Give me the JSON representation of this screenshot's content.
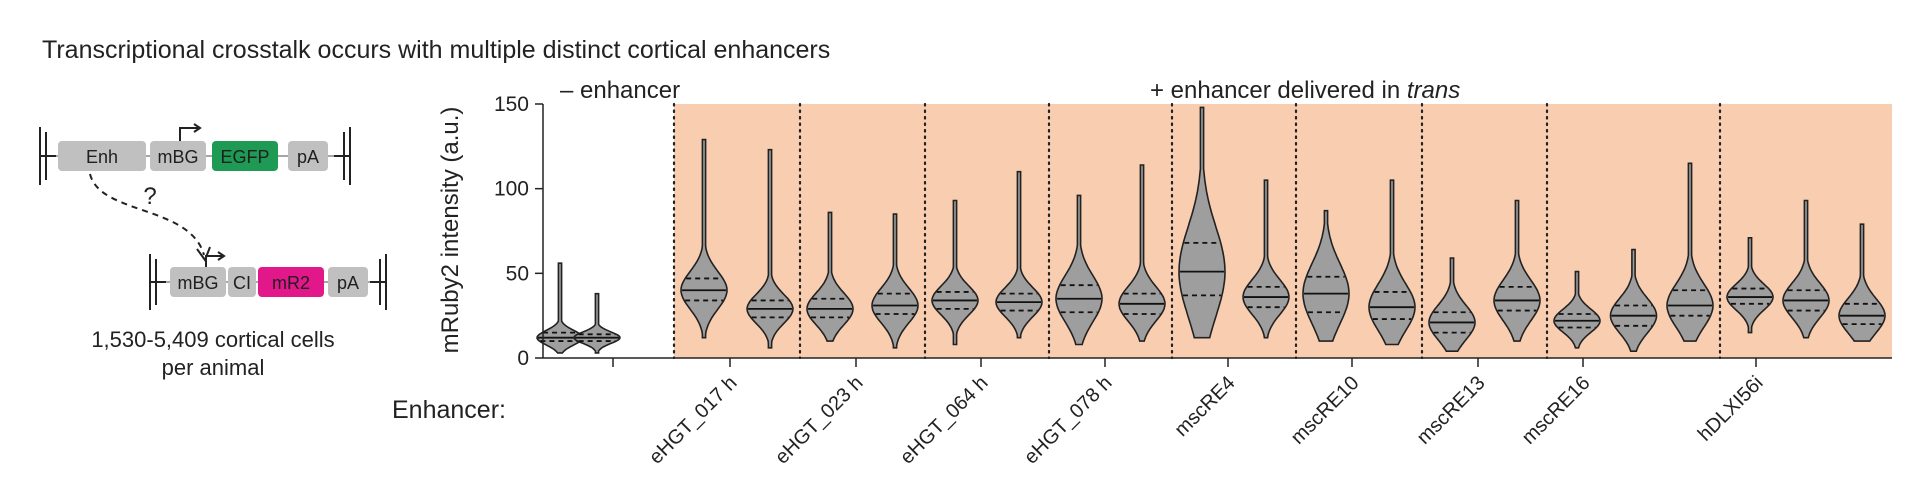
{
  "title": "Transcriptional crosstalk occurs with multiple distinct cortical enhancers",
  "schematic": {
    "construct_top": [
      "Enh",
      "mBG",
      "EGFP",
      "pA"
    ],
    "construct_bottom": [
      "mBG",
      "CI",
      "mR2",
      "pA"
    ],
    "question_mark": "?",
    "caption_line1": "1,530-5,409 cortical cells",
    "caption_line2": "per animal",
    "colors": {
      "part": "#c0c0c0",
      "egfp": "#1e9a55",
      "mr2": "#e2178a"
    }
  },
  "row_label": "Enhancer:",
  "chart_data": {
    "type": "violin",
    "ylabel": "mRuby2 intensity (a.u.)",
    "ylim": [
      0,
      150
    ],
    "yticks": [
      0,
      50,
      100,
      150
    ],
    "panel_labels": {
      "minus": "– enhancer",
      "plus_prefix": "+ enhancer delivered in ",
      "plus_italic": "trans"
    },
    "shade_color": "#f9cdb0",
    "violin_color": "#9e9e9e",
    "groups": [
      {
        "label": "",
        "shaded": false,
        "violins": [
          {
            "min": 3,
            "q1": 10,
            "median": 12,
            "q3": 15,
            "max": 56
          },
          {
            "min": 3,
            "q1": 10,
            "median": 12,
            "q3": 14,
            "max": 38
          }
        ]
      },
      {
        "label": "eHGT_017 h",
        "shaded": true,
        "violins": [
          {
            "min": 12,
            "q1": 34,
            "median": 40,
            "q3": 47,
            "max": 129
          },
          {
            "min": 6,
            "q1": 24,
            "median": 29,
            "q3": 34,
            "max": 123
          }
        ]
      },
      {
        "label": "eHGT_023 h",
        "shaded": true,
        "violins": [
          {
            "min": 10,
            "q1": 24,
            "median": 29,
            "q3": 35,
            "max": 86
          },
          {
            "min": 6,
            "q1": 26,
            "median": 31,
            "q3": 38,
            "max": 85
          }
        ]
      },
      {
        "label": "eHGT_064 h",
        "shaded": true,
        "violins": [
          {
            "min": 8,
            "q1": 29,
            "median": 34,
            "q3": 39,
            "max": 93
          },
          {
            "min": 12,
            "q1": 28,
            "median": 33,
            "q3": 38,
            "max": 110
          }
        ]
      },
      {
        "label": "eHGT_078 h",
        "shaded": true,
        "violins": [
          {
            "min": 8,
            "q1": 27,
            "median": 35,
            "q3": 43,
            "max": 96
          },
          {
            "min": 10,
            "q1": 26,
            "median": 32,
            "q3": 38,
            "max": 114
          }
        ]
      },
      {
        "label": "mscRE4",
        "shaded": true,
        "violins": [
          {
            "min": 12,
            "q1": 37,
            "median": 51,
            "q3": 68,
            "max": 148
          },
          {
            "min": 12,
            "q1": 30,
            "median": 36,
            "q3": 42,
            "max": 105
          }
        ]
      },
      {
        "label": "mscRE10",
        "shaded": true,
        "violins": [
          {
            "min": 10,
            "q1": 27,
            "median": 38,
            "q3": 48,
            "max": 87
          },
          {
            "min": 8,
            "q1": 23,
            "median": 30,
            "q3": 39,
            "max": 105
          }
        ]
      },
      {
        "label": "mscRE13",
        "shaded": true,
        "violins": [
          {
            "min": 4,
            "q1": 15,
            "median": 21,
            "q3": 27,
            "max": 59
          },
          {
            "min": 10,
            "q1": 28,
            "median": 34,
            "q3": 42,
            "max": 93
          }
        ]
      },
      {
        "label": "mscRE16",
        "shaded": true,
        "violins": [
          {
            "min": 6,
            "q1": 18,
            "median": 22,
            "q3": 26,
            "max": 51
          },
          {
            "min": 4,
            "q1": 19,
            "median": 25,
            "q3": 31,
            "max": 64
          },
          {
            "min": 10,
            "q1": 25,
            "median": 31,
            "q3": 40,
            "max": 115
          }
        ]
      },
      {
        "label": "hDLXI56i",
        "shaded": true,
        "violins": [
          {
            "min": 15,
            "q1": 32,
            "median": 36,
            "q3": 41,
            "max": 71
          },
          {
            "min": 12,
            "q1": 28,
            "median": 34,
            "q3": 40,
            "max": 93
          },
          {
            "min": 10,
            "q1": 20,
            "median": 25,
            "q3": 32,
            "max": 79
          }
        ]
      }
    ]
  }
}
